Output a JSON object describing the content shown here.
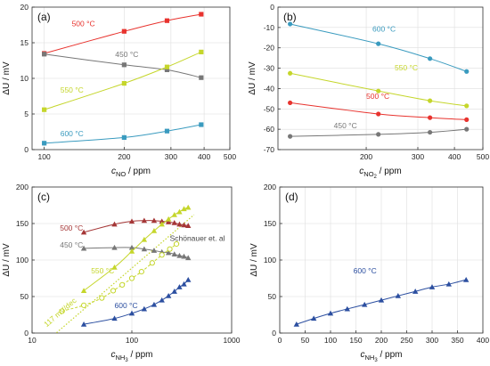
{
  "chart_data": [
    {
      "type": "line",
      "panel_label": "(a)",
      "xlabel_main": "c",
      "xlabel_sub": "NO",
      "xlabel_unit": "ppm",
      "ylabel": "ΔU / mV",
      "xscale": "log",
      "xlim": [
        90,
        500
      ],
      "ylim": [
        0,
        20
      ],
      "xticks": [
        100,
        200,
        300,
        400,
        500
      ],
      "xtick_labels": [
        "100",
        "200",
        "300",
        "400",
        "500"
      ],
      "yticks": [
        0,
        5,
        10,
        15,
        20
      ],
      "ytick_labels": [
        "0",
        "5",
        "10",
        "15",
        "20"
      ],
      "grid": true,
      "series": [
        {
          "name": "500 °C",
          "color": "#e8332e",
          "marker": "square",
          "x": [
            100,
            200,
            290,
            390
          ],
          "y": [
            13.5,
            16.6,
            18.1,
            19.0
          ],
          "label_x": 127,
          "label_y": 17.3
        },
        {
          "name": "450 °C",
          "color": "#777777",
          "marker": "square",
          "x": [
            100,
            200,
            290,
            390
          ],
          "y": [
            13.4,
            11.9,
            11.2,
            10.1
          ],
          "label_x": 185,
          "label_y": 13.0
        },
        {
          "name": "550 °C",
          "color": "#c5d62b",
          "marker": "square",
          "x": [
            100,
            200,
            290,
            390
          ],
          "y": [
            5.6,
            9.3,
            11.6,
            13.7
          ],
          "label_x": 115,
          "label_y": 8.0
        },
        {
          "name": "600 °C",
          "color": "#3a9bbf",
          "marker": "square",
          "x": [
            100,
            200,
            290,
            390
          ],
          "y": [
            0.9,
            1.7,
            2.6,
            3.5
          ],
          "label_x": 115,
          "label_y": 1.9
        }
      ]
    },
    {
      "type": "line",
      "panel_label": "(b)",
      "xlabel_main": "c",
      "xlabel_sub": "NO",
      "xlabel_sub2": "2",
      "xlabel_unit": "ppm",
      "ylabel": "ΔU / mV",
      "xscale": "log",
      "xlim": [
        100,
        500
      ],
      "ylim": [
        -70,
        0
      ],
      "xticks": [
        200,
        300,
        400,
        500
      ],
      "xtick_labels": [
        "200",
        "300",
        "400",
        "500"
      ],
      "yticks": [
        -70,
        -60,
        -50,
        -40,
        -30,
        -20,
        -10,
        0
      ],
      "ytick_labels": [
        "-70",
        "-60",
        "-50",
        "-40",
        "-30",
        "-20",
        "-10",
        "0"
      ],
      "grid": true,
      "series": [
        {
          "name": "600 °C",
          "color": "#3a9bbf",
          "marker": "circle",
          "x": [
            110,
            220,
            330,
            440
          ],
          "y": [
            -8.3,
            -18.0,
            -25.3,
            -31.6
          ],
          "label_x": 210,
          "label_y": -12.0
        },
        {
          "name": "550 °C",
          "color": "#c5d62b",
          "marker": "circle",
          "x": [
            110,
            220,
            330,
            440
          ],
          "y": [
            -32.5,
            -41.2,
            -46.0,
            -48.5
          ],
          "label_x": 250,
          "label_y": -31.0
        },
        {
          "name": "500 °C",
          "color": "#e8332e",
          "marker": "circle",
          "x": [
            110,
            220,
            330,
            440
          ],
          "y": [
            -47.0,
            -52.5,
            -54.3,
            -55.3
          ],
          "label_x": 200,
          "label_y": -45.0
        },
        {
          "name": "450 °C",
          "color": "#777777",
          "marker": "circle",
          "x": [
            110,
            220,
            330,
            440
          ],
          "y": [
            -63.5,
            -62.5,
            -61.5,
            -60.0
          ],
          "label_x": 155,
          "label_y": -59.5
        }
      ]
    },
    {
      "type": "line",
      "panel_label": "(c)",
      "xlabel_main": "c",
      "xlabel_sub": "NH",
      "xlabel_sub2": "3",
      "xlabel_unit": "ppm",
      "ylabel": "ΔU / mV",
      "xscale": "log",
      "xlim": [
        10,
        1000
      ],
      "ylim": [
        0,
        200
      ],
      "xticks": [
        10,
        100,
        1000
      ],
      "xtick_labels": [
        "10",
        "100",
        "1000"
      ],
      "yticks": [
        0,
        50,
        100,
        150,
        200
      ],
      "ytick_labels": [
        "0",
        "50",
        "100",
        "150",
        "200"
      ],
      "grid": true,
      "reference_line": {
        "label": "117 mV/dec",
        "color": "#c5d62b",
        "x": [
          12,
          420
        ],
        "y": [
          -19,
          162
        ]
      },
      "series": [
        {
          "name": "500 °C",
          "color": "#a53737",
          "marker": "triangle",
          "x": [
            33,
            67,
            100,
            133,
            167,
            200,
            233,
            267,
            300,
            333,
            367
          ],
          "y": [
            138,
            149,
            153,
            154,
            154,
            153,
            152,
            151,
            149,
            148,
            147
          ],
          "label_x": 19,
          "label_y": 140
        },
        {
          "name": "450 °C",
          "color": "#777777",
          "marker": "triangle",
          "x": [
            33,
            67,
            100,
            133,
            167,
            200,
            233,
            267,
            300,
            333,
            367
          ],
          "y": [
            116,
            117,
            117,
            115,
            113,
            111,
            110,
            108,
            106,
            105,
            103
          ],
          "label_x": 19,
          "label_y": 117
        },
        {
          "name": "550 °C",
          "color": "#c5d62b",
          "marker": "triangle",
          "x": [
            33,
            67,
            100,
            133,
            167,
            200,
            233,
            267,
            300,
            333,
            367
          ],
          "y": [
            58,
            90,
            112,
            128,
            140,
            149,
            156,
            162,
            166,
            170,
            172
          ],
          "label_x": 39,
          "label_y": 82
        },
        {
          "name": "600 °C",
          "color": "#2c4fa0",
          "marker": "triangle",
          "x": [
            33,
            67,
            100,
            133,
            167,
            200,
            233,
            267,
            300,
            333,
            367
          ],
          "y": [
            12,
            20,
            27,
            33,
            39,
            45,
            51,
            57,
            63,
            67,
            73
          ],
          "label_x": 67,
          "label_y": 34
        },
        {
          "name": "Schönauer et. al",
          "color": "#c5d62b",
          "marker": "open-circle",
          "dashed": true,
          "x": [
            20,
            33,
            50,
            65,
            80,
            100,
            125,
            160,
            200,
            240,
            280
          ],
          "y": [
            30,
            38,
            48,
            58,
            66,
            75,
            84,
            96,
            107,
            115,
            122
          ],
          "label_x": 240,
          "label_y": 126
        }
      ]
    },
    {
      "type": "line",
      "panel_label": "(d)",
      "xlabel_main": "c",
      "xlabel_sub": "NH",
      "xlabel_sub2": "3",
      "xlabel_unit": "ppm",
      "ylabel": "ΔU / mV",
      "xscale": "linear",
      "xlim": [
        0,
        400
      ],
      "ylim": [
        0,
        200
      ],
      "xticks": [
        0,
        50,
        100,
        150,
        200,
        250,
        300,
        350,
        400
      ],
      "xtick_labels": [
        "0",
        "50",
        "100",
        "150",
        "200",
        "250",
        "300",
        "350",
        "400"
      ],
      "yticks": [
        0,
        50,
        100,
        150,
        200
      ],
      "ytick_labels": [
        "0",
        "50",
        "100",
        "150",
        "200"
      ],
      "grid": true,
      "series": [
        {
          "name": "600 °C",
          "color": "#2c4fa0",
          "marker": "triangle",
          "x": [
            33,
            67,
            100,
            133,
            167,
            200,
            233,
            267,
            300,
            333,
            367
          ],
          "y": [
            12,
            20,
            27,
            33,
            39,
            45,
            51,
            57,
            63,
            67,
            73
          ],
          "label_x": 145,
          "label_y": 82
        }
      ]
    }
  ]
}
